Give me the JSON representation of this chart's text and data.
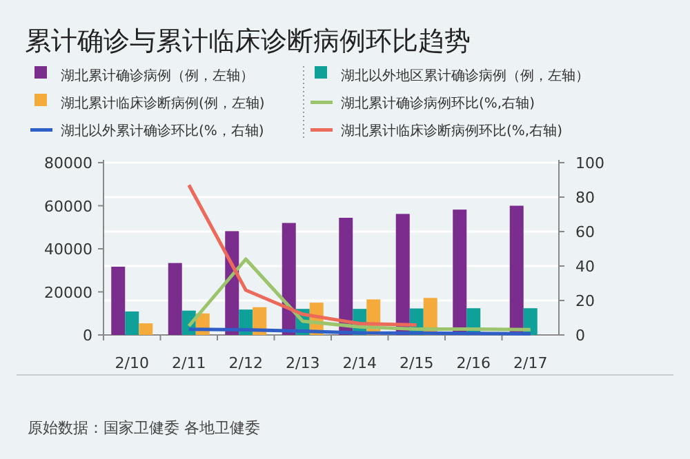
{
  "chart_data": {
    "type": "bar",
    "title": "累计确诊与累计临床诊断病例环比趋势",
    "categories": [
      "2/10",
      "2/11",
      "2/12",
      "2/13",
      "2/14",
      "2/15",
      "2/16",
      "2/17"
    ],
    "series": [
      {
        "name": "湖北累计确诊病例（例，左轴）",
        "color": "#7b2d8e",
        "values": [
          31700,
          33400,
          48200,
          52000,
          54400,
          56200,
          58200,
          60000
        ]
      },
      {
        "name": "湖北以外地区累计确诊病例（例，左轴）",
        "color": "#10a09a",
        "values": [
          10900,
          11300,
          11800,
          12100,
          12100,
          12300,
          12400,
          12400
        ]
      },
      {
        "name": "湖北累计临床诊断病例(例，左轴)",
        "color": "#f5ab3c",
        "values": [
          5400,
          10000,
          12900,
          15000,
          16500,
          17200,
          null,
          null
        ]
      },
      {
        "name": "湖北累计确诊病例环比(%,右轴)",
        "type": "line",
        "axis": "y2",
        "color": "#9bc46c",
        "values": [
          null,
          5.2,
          44,
          8,
          4.7,
          3.4,
          3.4,
          3.1
        ]
      },
      {
        "name": "湖北以外累计确诊环比(%，右轴)",
        "type": "line",
        "axis": "y2",
        "color": "#2f5fc6",
        "values": [
          null,
          3.3,
          3,
          2.2,
          1.2,
          1.1,
          0.9,
          0.7
        ]
      },
      {
        "name": "湖北累计临床诊断病例环比(%,右轴)",
        "type": "line",
        "axis": "y2",
        "color": "#ec6a5a",
        "values": [
          null,
          87,
          26,
          12,
          6.6,
          5.8,
          null,
          null
        ]
      }
    ],
    "ylim": [
      0,
      80000
    ],
    "yticks": [
      0,
      20000,
      40000,
      60000,
      80000
    ],
    "y2lim": [
      0,
      100
    ],
    "y2ticks": [
      0,
      20,
      40,
      60,
      80,
      100
    ],
    "grid": "y",
    "legend": "top",
    "annotations": [
      "原始数据：国家卫健委 各地卫健委"
    ]
  }
}
